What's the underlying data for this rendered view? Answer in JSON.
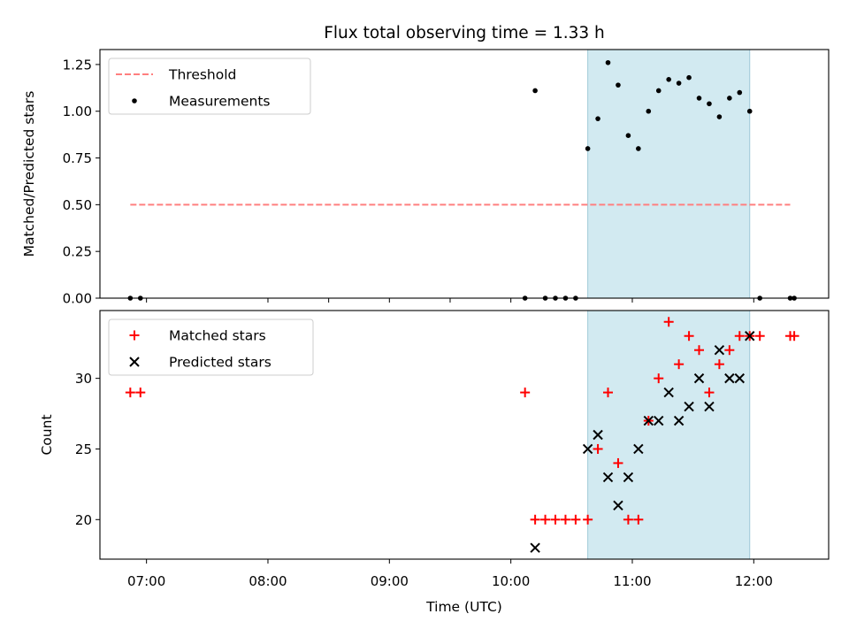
{
  "title": "Flux total observing time = 1.33 h",
  "chart_data": [
    {
      "type": "scatter",
      "title": "Flux total observing time = 1.33 h",
      "xlabel": "Time (UTC)",
      "ylabel": "Matched/Predicted stars",
      "x_ticks": [
        "07:00",
        "08:00",
        "09:00",
        "10:00",
        "11:00",
        "12:00"
      ],
      "xlim": [
        "06:37",
        "12:37"
      ],
      "ylim": [
        0,
        1.33
      ],
      "yticks": [
        "0.00",
        "0.25",
        "0.50",
        "0.75",
        "1.00",
        "1.25"
      ],
      "shaded_span": {
        "start": "10:38",
        "end": "11:58",
        "color": "#add8e6"
      },
      "legend": {
        "position": "upper left"
      },
      "series": [
        {
          "name": "Threshold",
          "style": "dashed-line",
          "color": "#ff7f7f",
          "points": [
            {
              "x": "06:52",
              "y": 0.5
            },
            {
              "x": "12:18",
              "y": 0.5
            }
          ]
        },
        {
          "name": "Measurements",
          "style": "dot",
          "color": "#000000",
          "points": [
            {
              "x": "06:52",
              "y": 0.0
            },
            {
              "x": "06:57",
              "y": 0.0
            },
            {
              "x": "10:07",
              "y": 0.0
            },
            {
              "x": "10:12",
              "y": 1.11
            },
            {
              "x": "10:17",
              "y": 0.0
            },
            {
              "x": "10:22",
              "y": 0.0
            },
            {
              "x": "10:27",
              "y": 0.0
            },
            {
              "x": "10:32",
              "y": 0.0
            },
            {
              "x": "10:38",
              "y": 0.8
            },
            {
              "x": "10:43",
              "y": 0.96
            },
            {
              "x": "10:48",
              "y": 1.26
            },
            {
              "x": "10:53",
              "y": 1.14
            },
            {
              "x": "10:58",
              "y": 0.87
            },
            {
              "x": "11:03",
              "y": 0.8
            },
            {
              "x": "11:08",
              "y": 1.0
            },
            {
              "x": "11:13",
              "y": 1.11
            },
            {
              "x": "11:18",
              "y": 1.17
            },
            {
              "x": "11:23",
              "y": 1.15
            },
            {
              "x": "11:28",
              "y": 1.18
            },
            {
              "x": "11:33",
              "y": 1.07
            },
            {
              "x": "11:38",
              "y": 1.04
            },
            {
              "x": "11:43",
              "y": 0.97
            },
            {
              "x": "11:48",
              "y": 1.07
            },
            {
              "x": "11:53",
              "y": 1.1
            },
            {
              "x": "11:58",
              "y": 1.0
            },
            {
              "x": "12:03",
              "y": 0.0
            },
            {
              "x": "12:18",
              "y": 0.0
            },
            {
              "x": "12:20",
              "y": 0.0
            }
          ]
        }
      ]
    },
    {
      "type": "scatter",
      "xlabel": "Time (UTC)",
      "ylabel": "Count",
      "x_ticks": [
        "07:00",
        "08:00",
        "09:00",
        "10:00",
        "11:00",
        "12:00"
      ],
      "xlim": [
        "06:37",
        "12:37"
      ],
      "ylim": [
        17.2,
        34.8
      ],
      "yticks": [
        "20",
        "25",
        "30"
      ],
      "shaded_span": {
        "start": "10:38",
        "end": "11:58",
        "color": "#add8e6"
      },
      "legend": {
        "position": "upper left"
      },
      "series": [
        {
          "name": "Matched stars",
          "style": "plus",
          "color": "#ff0000",
          "points": [
            {
              "x": "06:52",
              "y": 29
            },
            {
              "x": "06:57",
              "y": 29
            },
            {
              "x": "10:07",
              "y": 29
            },
            {
              "x": "10:12",
              "y": 20
            },
            {
              "x": "10:17",
              "y": 20
            },
            {
              "x": "10:22",
              "y": 20
            },
            {
              "x": "10:27",
              "y": 20
            },
            {
              "x": "10:32",
              "y": 20
            },
            {
              "x": "10:38",
              "y": 20
            },
            {
              "x": "10:43",
              "y": 25
            },
            {
              "x": "10:48",
              "y": 29
            },
            {
              "x": "10:53",
              "y": 24
            },
            {
              "x": "10:58",
              "y": 20
            },
            {
              "x": "11:03",
              "y": 20
            },
            {
              "x": "11:08",
              "y": 27
            },
            {
              "x": "11:13",
              "y": 30
            },
            {
              "x": "11:18",
              "y": 34
            },
            {
              "x": "11:23",
              "y": 31
            },
            {
              "x": "11:28",
              "y": 33
            },
            {
              "x": "11:33",
              "y": 32
            },
            {
              "x": "11:38",
              "y": 29
            },
            {
              "x": "11:43",
              "y": 31
            },
            {
              "x": "11:48",
              "y": 32
            },
            {
              "x": "11:53",
              "y": 33
            },
            {
              "x": "11:58",
              "y": 33
            },
            {
              "x": "12:03",
              "y": 33
            },
            {
              "x": "12:18",
              "y": 33
            },
            {
              "x": "12:20",
              "y": 33
            }
          ]
        },
        {
          "name": "Predicted stars",
          "style": "x",
          "color": "#000000",
          "points": [
            {
              "x": "10:12",
              "y": 18
            },
            {
              "x": "10:38",
              "y": 25
            },
            {
              "x": "10:43",
              "y": 26
            },
            {
              "x": "10:48",
              "y": 23
            },
            {
              "x": "10:53",
              "y": 21
            },
            {
              "x": "10:58",
              "y": 23
            },
            {
              "x": "11:03",
              "y": 25
            },
            {
              "x": "11:08",
              "y": 27
            },
            {
              "x": "11:13",
              "y": 27
            },
            {
              "x": "11:18",
              "y": 29
            },
            {
              "x": "11:23",
              "y": 27
            },
            {
              "x": "11:28",
              "y": 28
            },
            {
              "x": "11:33",
              "y": 30
            },
            {
              "x": "11:38",
              "y": 28
            },
            {
              "x": "11:43",
              "y": 32
            },
            {
              "x": "11:48",
              "y": 30
            },
            {
              "x": "11:53",
              "y": 30
            },
            {
              "x": "11:58",
              "y": 33
            }
          ]
        }
      ]
    }
  ]
}
